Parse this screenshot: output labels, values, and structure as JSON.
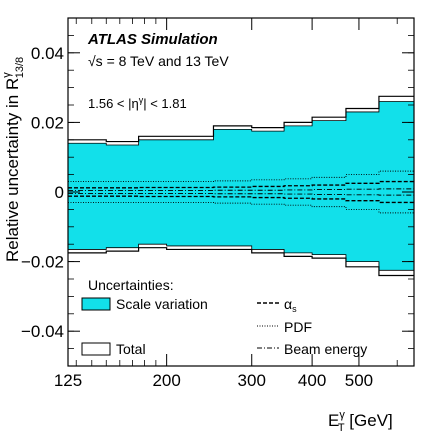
{
  "chart_data": {
    "type": "area",
    "title": "",
    "experiment": "ATLAS Simulation",
    "energy_label": "√s = 8 TeV and 13 TeV",
    "region_label": "1.56 < |η",
    "region_label_sup": "γ",
    "region_label_tail": "| < 1.81",
    "xlabel": {
      "main": "E",
      "sup": "γ",
      "sub": "T",
      "unit": " [GeV]"
    },
    "ylabel": {
      "main": "Relative uncertainty in R",
      "sup": "γ",
      "sub": "13/8"
    },
    "xscale": "log",
    "xlim": [
      125,
      650
    ],
    "ylim": [
      -0.05,
      0.05
    ],
    "x_ticks": [
      125,
      200,
      300,
      400,
      500
    ],
    "x_tick_labels": [
      "125",
      "200",
      "300",
      "400",
      "500"
    ],
    "y_ticks": [
      -0.04,
      -0.02,
      0,
      0.02,
      0.04
    ],
    "y_tick_labels": [
      "−0.04",
      "−0.02",
      "0",
      "0.02",
      "0.04"
    ],
    "bin_edges": [
      125,
      150,
      175,
      200,
      250,
      300,
      350,
      400,
      470,
      550,
      650
    ],
    "series": [
      {
        "name": "Total",
        "style": "hollow-box",
        "color": "#000000",
        "upper": [
          0.015,
          0.0145,
          0.016,
          0.016,
          0.019,
          0.0185,
          0.02,
          0.0215,
          0.024,
          0.0275
        ],
        "lower": [
          -0.0175,
          -0.017,
          -0.016,
          -0.0165,
          -0.0165,
          -0.0175,
          -0.0185,
          -0.019,
          -0.0215,
          -0.024
        ]
      },
      {
        "name": "Scale variation",
        "style": "filled",
        "color": "#12e0ea",
        "upper": [
          0.014,
          0.0135,
          0.015,
          0.015,
          0.018,
          0.0175,
          0.019,
          0.0205,
          0.023,
          0.026
        ],
        "lower": [
          -0.0165,
          -0.016,
          -0.015,
          -0.0155,
          -0.0155,
          -0.0165,
          -0.0175,
          -0.018,
          -0.02,
          -0.0225
        ]
      },
      {
        "name": "α",
        "name_sub": "s",
        "style": "dashed",
        "color": "#000000",
        "upper": [
          0.0012,
          0.0012,
          0.0013,
          0.0013,
          0.0014,
          0.0016,
          0.0018,
          0.002,
          0.0025,
          0.003
        ],
        "lower": [
          -0.0012,
          -0.0012,
          -0.0013,
          -0.0013,
          -0.0014,
          -0.0016,
          -0.0018,
          -0.002,
          -0.0025,
          -0.003
        ]
      },
      {
        "name": "PDF",
        "style": "dotted",
        "color": "#000000",
        "upper": [
          0.003,
          0.003,
          0.003,
          0.003,
          0.0032,
          0.0035,
          0.0038,
          0.0042,
          0.005,
          0.006
        ],
        "lower": [
          -0.003,
          -0.003,
          -0.003,
          -0.003,
          -0.0032,
          -0.0035,
          -0.0038,
          -0.0042,
          -0.005,
          -0.006
        ]
      },
      {
        "name": "Beam energy",
        "style": "dashdot",
        "color": "#000000",
        "upper": [
          0.0004,
          0.0004,
          0.0004,
          0.0004,
          0.0005,
          0.0005,
          0.0006,
          0.0007,
          0.0008,
          0.0009
        ],
        "lower": [
          -0.0004,
          -0.0004,
          -0.0004,
          -0.0004,
          -0.0005,
          -0.0005,
          -0.0006,
          -0.0007,
          -0.0008,
          -0.0009
        ]
      }
    ],
    "legend_title": "Uncertainties:",
    "legend_placement": "bottom"
  }
}
